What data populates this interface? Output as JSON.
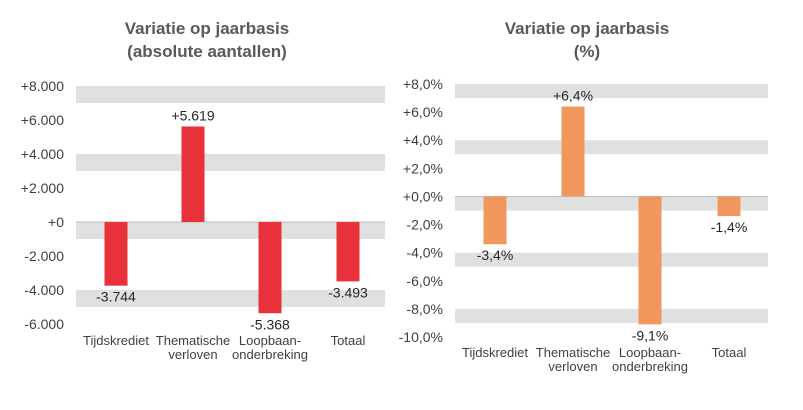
{
  "chart_data": [
    {
      "type": "bar",
      "title": [
        "Variatie op jaarbasis",
        "(absolute aantallen)"
      ],
      "categories": [
        [
          "Tijdskrediet"
        ],
        [
          "Thematische",
          "verloven"
        ],
        [
          "Loopbaan-",
          "onderbreking"
        ],
        [
          "Totaal"
        ]
      ],
      "values": [
        -3744,
        5619,
        -5368,
        -3493
      ],
      "data_labels": [
        "-3.744",
        "+5.619",
        "-5.368",
        "-3.493"
      ],
      "ylim": [
        -6000,
        8000
      ],
      "yticks": [
        8000,
        6000,
        4000,
        2000,
        0,
        -2000,
        -4000,
        -6000
      ],
      "ytick_labels": [
        "+8.000",
        "+6.000",
        "+4.000",
        "+2.000",
        "+0",
        "-2.000",
        "-4.000",
        "-6.000"
      ],
      "bar_color": "#e8313a",
      "band_color": "#e0e0e0",
      "grid": true
    },
    {
      "type": "bar",
      "title": [
        "Variatie op jaarbasis",
        "(%)"
      ],
      "categories": [
        [
          "Tijdskrediet"
        ],
        [
          "Thematische",
          "verloven"
        ],
        [
          "Loopbaan-",
          "onderbreking"
        ],
        [
          "Totaal"
        ]
      ],
      "values": [
        -3.4,
        6.4,
        -9.1,
        -1.4
      ],
      "data_labels": [
        "-3,4%",
        "+6,4%",
        "-9,1%",
        "-1,4%"
      ],
      "ylim": [
        -10,
        8
      ],
      "yticks": [
        8,
        6,
        4,
        2,
        0,
        -2,
        -4,
        -6,
        -8,
        -10
      ],
      "ytick_labels": [
        "+8,0%",
        "+6,0%",
        "+4,0%",
        "+2,0%",
        "+0,0%",
        "-2,0%",
        "-4,0%",
        "-6,0%",
        "-8,0%",
        "-10,0%"
      ],
      "bar_color": "#f0975e",
      "band_color": "#e0e0e0",
      "grid": true
    }
  ]
}
